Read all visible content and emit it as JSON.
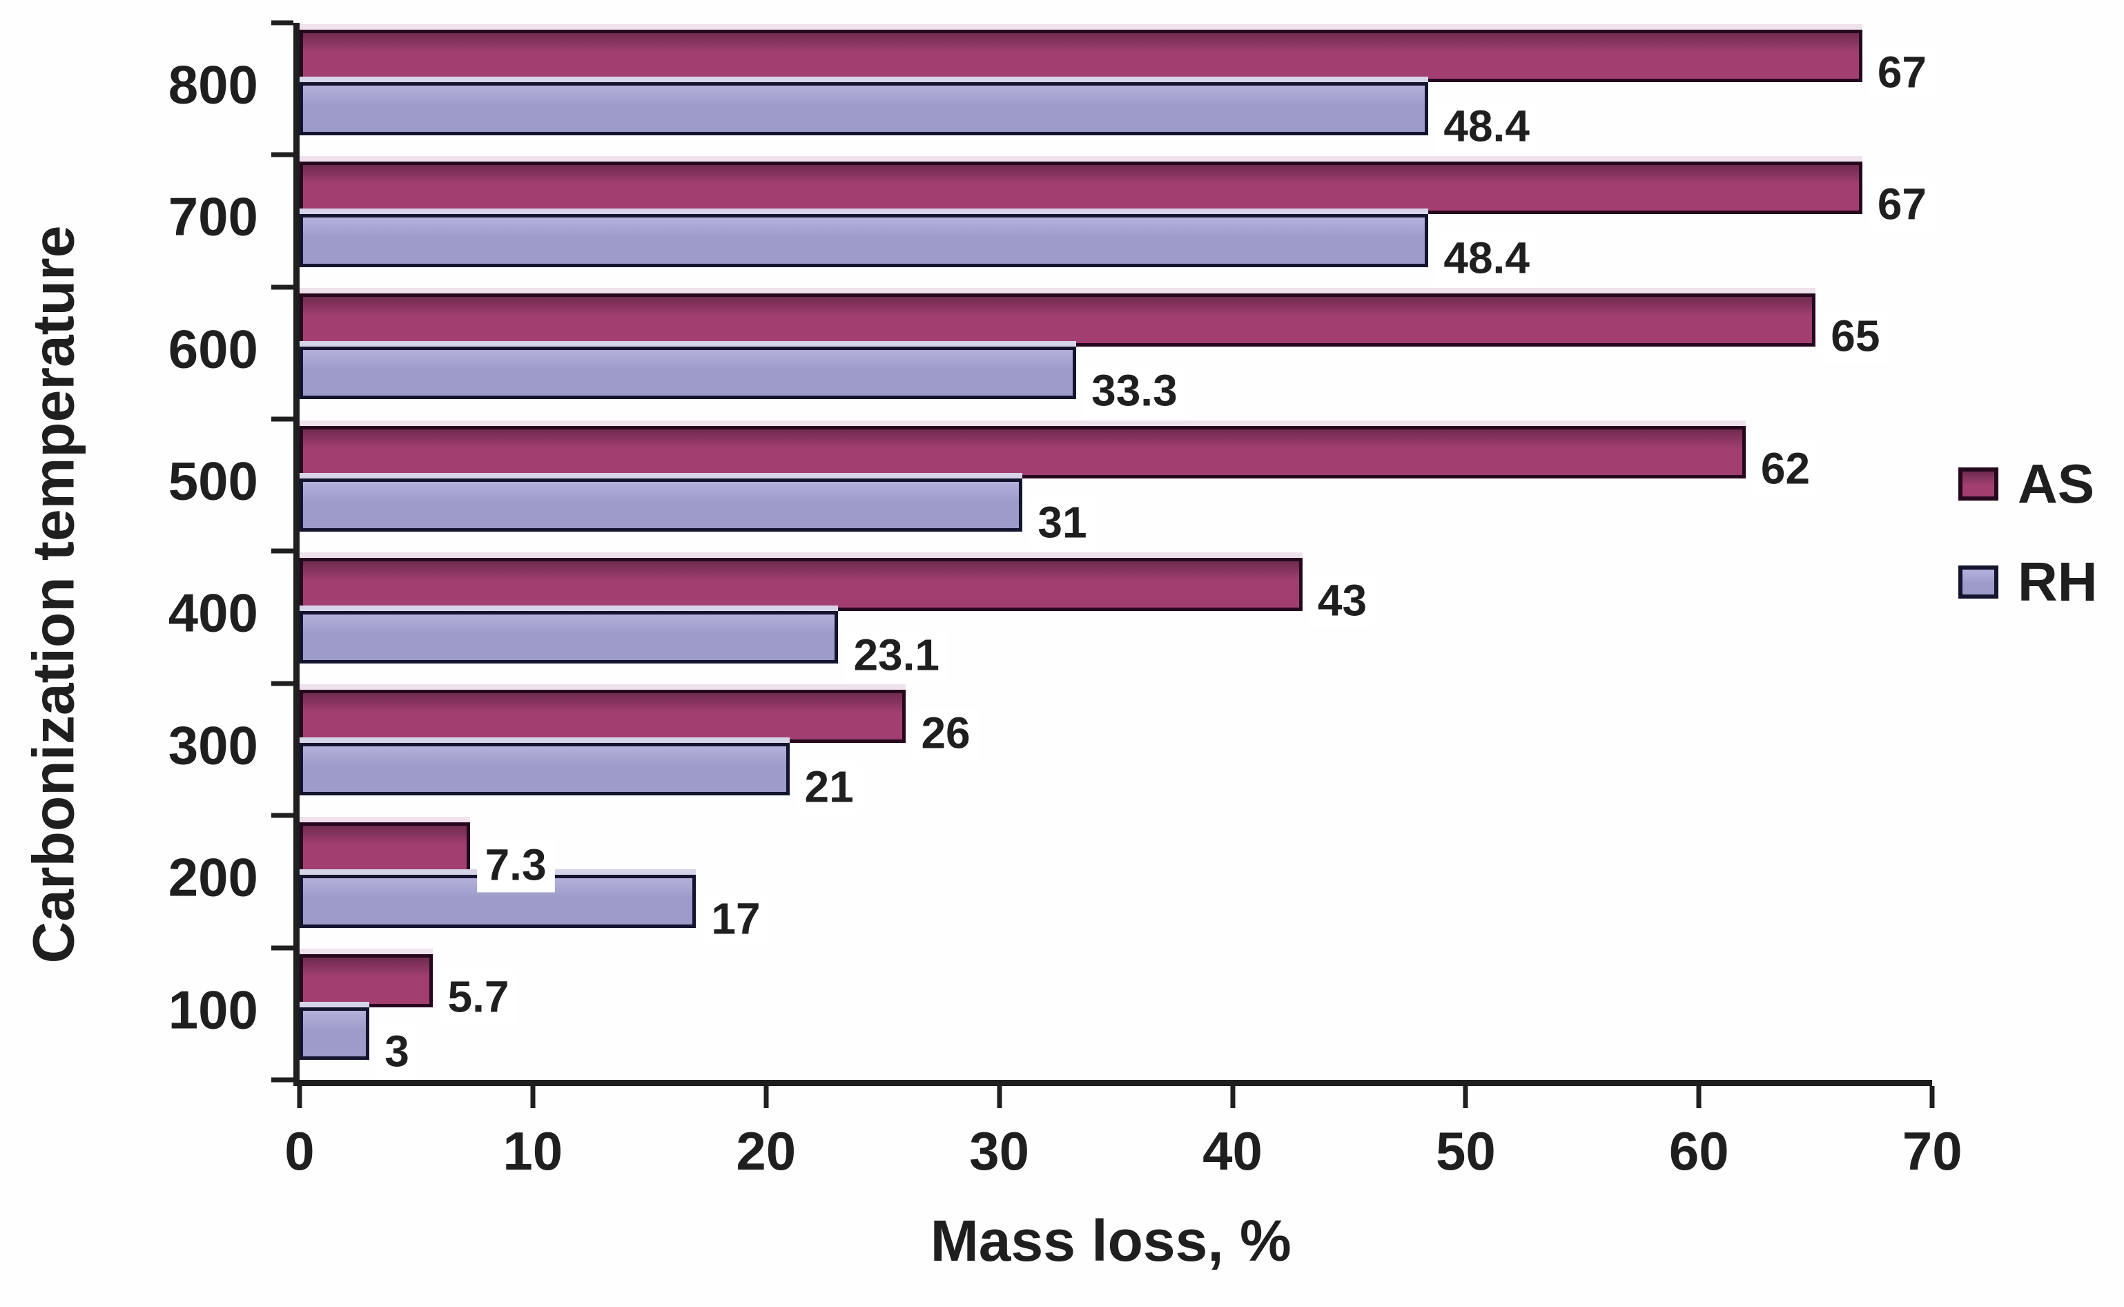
{
  "chart_data": {
    "type": "bar",
    "orientation": "horizontal",
    "title": "",
    "xlabel": "Mass loss, %",
    "ylabel": "Carbonization temperature",
    "categories": [
      "800",
      "700",
      "600",
      "500",
      "400",
      "300",
      "200",
      "100"
    ],
    "series": [
      {
        "name": "AS",
        "values": [
          67,
          67,
          65,
          62,
          43,
          26,
          7.3,
          5.7
        ],
        "labels": [
          "67",
          "67",
          "65",
          "62",
          "43",
          "26",
          "7.3",
          "5.7"
        ],
        "fill_top": "#6f2b4f",
        "fill": "#a23f70",
        "border": "#26081e",
        "highlight": "#f0e2ed"
      },
      {
        "name": "RH",
        "values": [
          48.4,
          48.4,
          33.3,
          31,
          23.1,
          21,
          17,
          3
        ],
        "labels": [
          "48.4",
          "48.4",
          "33.3",
          "31",
          "23.1",
          "21",
          "17",
          "3"
        ],
        "fill_top": "#b4b2dc",
        "fill": "#9d9bc9",
        "border": "#15142f",
        "highlight": "#d6d4e9"
      }
    ],
    "xlim": [
      0,
      70
    ],
    "xticks": [
      "0",
      "10",
      "20",
      "30",
      "40",
      "50",
      "60",
      "70"
    ],
    "grid": false,
    "legend_position": "right",
    "axis_color": "#1f1f1f",
    "text_color": "#1f1f1f",
    "value_label_bg": "#ffffff"
  }
}
